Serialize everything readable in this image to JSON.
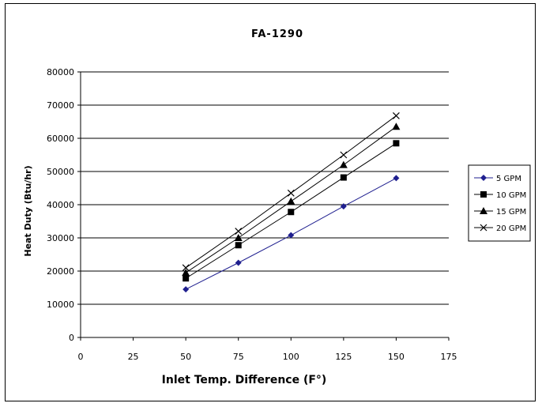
{
  "chart_data": {
    "type": "line",
    "title": "FA-1290",
    "xlabel": "Inlet Temp. Difference (F°)",
    "ylabel": "Heat Duty (Btu/hr)",
    "xlim": [
      0,
      175
    ],
    "ylim": [
      0,
      80000
    ],
    "x_ticks": [
      "0",
      "25",
      "50",
      "75",
      "100",
      "125",
      "150",
      "175"
    ],
    "y_ticks": [
      "0",
      "10000",
      "20000",
      "30000",
      "40000",
      "50000",
      "60000",
      "70000",
      "80000"
    ],
    "grid": "horizontal",
    "legend_position": "right",
    "x": [
      50,
      75,
      100,
      125,
      150
    ],
    "series": [
      {
        "name": "5 GPM",
        "marker": "diamond",
        "color": "#1f1f8f",
        "values": [
          14500,
          22500,
          30800,
          39500,
          48000
        ]
      },
      {
        "name": "10 GPM",
        "marker": "square",
        "color": "#000000",
        "values": [
          17800,
          27800,
          37800,
          48200,
          58500
        ]
      },
      {
        "name": "15 GPM",
        "marker": "triangle",
        "color": "#000000",
        "values": [
          19500,
          30000,
          41000,
          52000,
          63500
        ]
      },
      {
        "name": "20 GPM",
        "marker": "x",
        "color": "#000000",
        "values": [
          21000,
          32000,
          43500,
          55000,
          66800
        ]
      }
    ]
  }
}
